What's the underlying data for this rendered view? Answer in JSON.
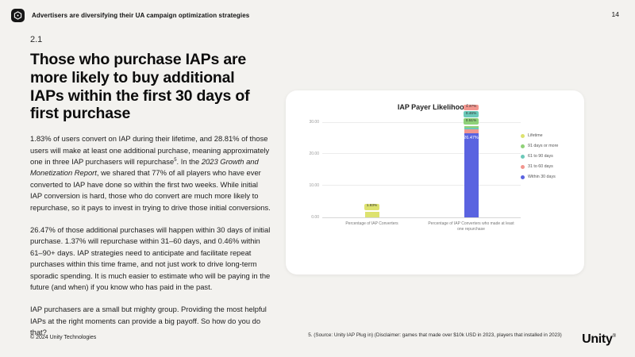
{
  "page": {
    "number": "14",
    "header_title": "Advertisers are diversifying their UA campaign optimization strategies",
    "section_number": "2.1",
    "title": "Those who purchase IAPs are more likely to buy additional IAPs within the first 30 days of first purchase",
    "paragraphs": [
      {
        "segments": [
          {
            "text": "1.83% of users convert on IAP during their lifetime, and 28.81% of those users will make at least one additional purchase, meaning approximately one in three IAP purchasers will repurchase",
            "style": "normal"
          },
          {
            "text": "5",
            "style": "sup"
          },
          {
            "text": ". In the ",
            "style": "normal"
          },
          {
            "text": "2023 Growth and Monetization Report",
            "style": "italic"
          },
          {
            "text": ", we shared that 77% of all players who have ever converted to IAP have done so within the first two weeks. While initial IAP conversion is hard, those who do convert are much more likely to repurchase, so it pays to invest in trying to drive those initial conversions.",
            "style": "normal"
          }
        ]
      },
      {
        "segments": [
          {
            "text": "26.47% of those additional purchases will happen within 30 days of initial purchase. 1.37% will repurchase within 31–60 days, and 0.46% within 61–90+ days. IAP strategies need to anticipate and facilitate repeat purchases within this time frame, and not just work to drive long-term sporadic spending. It is much easier to estimate who will be paying in the future (and when) if you know who has paid in the past.",
            "style": "normal"
          }
        ]
      },
      {
        "segments": [
          {
            "text": "IAP purchasers are a small but mighty group. Providing the most helpful IAPs at the right moments can provide a big payoff. So how do you do that?",
            "style": "normal"
          }
        ]
      }
    ],
    "footer_copyright": "© 2024 Unity Technologies",
    "footnote": "5. (Source: Unity IAP Plug in) (Disclaimer: games that made over $10k USD in 2023, players that installed in 2023)",
    "brand": "Unity",
    "brand_mark": "®"
  },
  "chart_data": {
    "type": "bar",
    "title": "IAP Payer Likelihoods",
    "categories": [
      "Percentage of IAP Converters",
      "Percentage of IAP Converters who made at least one repurchase"
    ],
    "series": [
      {
        "name": "Lifetime",
        "color": "#dde26f",
        "values": [
          1.83,
          0
        ],
        "label": "1.83%",
        "label_placement": "pill"
      },
      {
        "name": "91 days or more",
        "color": "#8fd178",
        "values": [
          0,
          0.51
        ],
        "label": "0.51%",
        "label_placement": "above"
      },
      {
        "name": "61 to 90 days",
        "color": "#6cc9b9",
        "values": [
          0,
          0.46
        ],
        "label": "0.46%",
        "label_placement": "above"
      },
      {
        "name": "31 to 60 days",
        "color": "#f2968f",
        "values": [
          0,
          1.37
        ],
        "label": "1.37%",
        "label_placement": "above"
      },
      {
        "name": "Within 30 days",
        "color": "#5a63e0",
        "values": [
          0,
          26.47
        ],
        "label": "26.47%",
        "label_placement": "inside"
      }
    ],
    "ylim": [
      0,
      30
    ],
    "yticks": [
      "30.00",
      "20.00",
      "10.00",
      "0.00"
    ],
    "grid": true,
    "legend_position": "right"
  }
}
